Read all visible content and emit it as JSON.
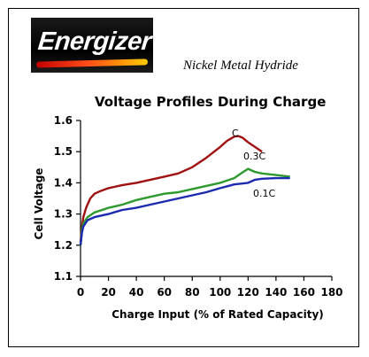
{
  "brand": {
    "logo_text": "Energizer"
  },
  "subtitle": "Nickel Metal Hydride",
  "chart_data": {
    "type": "line",
    "title": "Voltage Profiles During Charge",
    "xlabel": "Charge Input (% of Rated Capacity)",
    "ylabel": "Cell Voltage",
    "xlim": [
      0,
      180
    ],
    "ylim": [
      1.1,
      1.6
    ],
    "xticks": [
      0,
      20,
      40,
      60,
      80,
      100,
      120,
      140,
      160,
      180
    ],
    "yticks": [
      1.1,
      1.2,
      1.3,
      1.4,
      1.5,
      1.6
    ],
    "xtick_labels": [
      "0",
      "20",
      "40",
      "60",
      "80",
      "100",
      "120",
      "140",
      "160",
      "180"
    ],
    "ytick_labels": [
      "1.1",
      "1.2",
      "1.3",
      "1.4",
      "1.5",
      "1.6"
    ],
    "grid": false,
    "series": [
      {
        "name": "C",
        "color": "#a01010",
        "points": [
          [
            0,
            1.21
          ],
          [
            1,
            1.26
          ],
          [
            2,
            1.29
          ],
          [
            4,
            1.32
          ],
          [
            7,
            1.35
          ],
          [
            10,
            1.365
          ],
          [
            15,
            1.375
          ],
          [
            20,
            1.383
          ],
          [
            30,
            1.393
          ],
          [
            40,
            1.4
          ],
          [
            50,
            1.41
          ],
          [
            60,
            1.42
          ],
          [
            70,
            1.43
          ],
          [
            80,
            1.45
          ],
          [
            90,
            1.48
          ],
          [
            100,
            1.515
          ],
          [
            105,
            1.535
          ],
          [
            110,
            1.548
          ],
          [
            113,
            1.55
          ],
          [
            116,
            1.545
          ],
          [
            120,
            1.53
          ],
          [
            125,
            1.515
          ],
          [
            130,
            1.5
          ]
        ]
      },
      {
        "name": "0.3C",
        "color": "#2e9a2e",
        "points": [
          [
            0,
            1.2
          ],
          [
            1,
            1.25
          ],
          [
            2,
            1.27
          ],
          [
            5,
            1.29
          ],
          [
            10,
            1.305
          ],
          [
            20,
            1.32
          ],
          [
            30,
            1.33
          ],
          [
            40,
            1.345
          ],
          [
            50,
            1.355
          ],
          [
            60,
            1.365
          ],
          [
            70,
            1.37
          ],
          [
            80,
            1.38
          ],
          [
            90,
            1.39
          ],
          [
            100,
            1.4
          ],
          [
            110,
            1.415
          ],
          [
            115,
            1.43
          ],
          [
            120,
            1.445
          ],
          [
            125,
            1.435
          ],
          [
            130,
            1.43
          ],
          [
            140,
            1.425
          ],
          [
            150,
            1.42
          ]
        ]
      },
      {
        "name": "0.1C",
        "color": "#1c2ab0",
        "points": [
          [
            0,
            1.2
          ],
          [
            1,
            1.24
          ],
          [
            2,
            1.26
          ],
          [
            5,
            1.28
          ],
          [
            10,
            1.29
          ],
          [
            20,
            1.3
          ],
          [
            30,
            1.313
          ],
          [
            40,
            1.32
          ],
          [
            50,
            1.33
          ],
          [
            60,
            1.34
          ],
          [
            70,
            1.35
          ],
          [
            80,
            1.36
          ],
          [
            90,
            1.37
          ],
          [
            100,
            1.383
          ],
          [
            110,
            1.395
          ],
          [
            120,
            1.4
          ],
          [
            125,
            1.41
          ],
          [
            130,
            1.413
          ],
          [
            140,
            1.415
          ],
          [
            150,
            1.415
          ]
        ]
      }
    ],
    "annotations": [
      {
        "text": "C",
        "series": "C"
      },
      {
        "text": "0.3C",
        "series": "0.3C"
      },
      {
        "text": "0.1C",
        "series": "0.1C"
      }
    ]
  }
}
